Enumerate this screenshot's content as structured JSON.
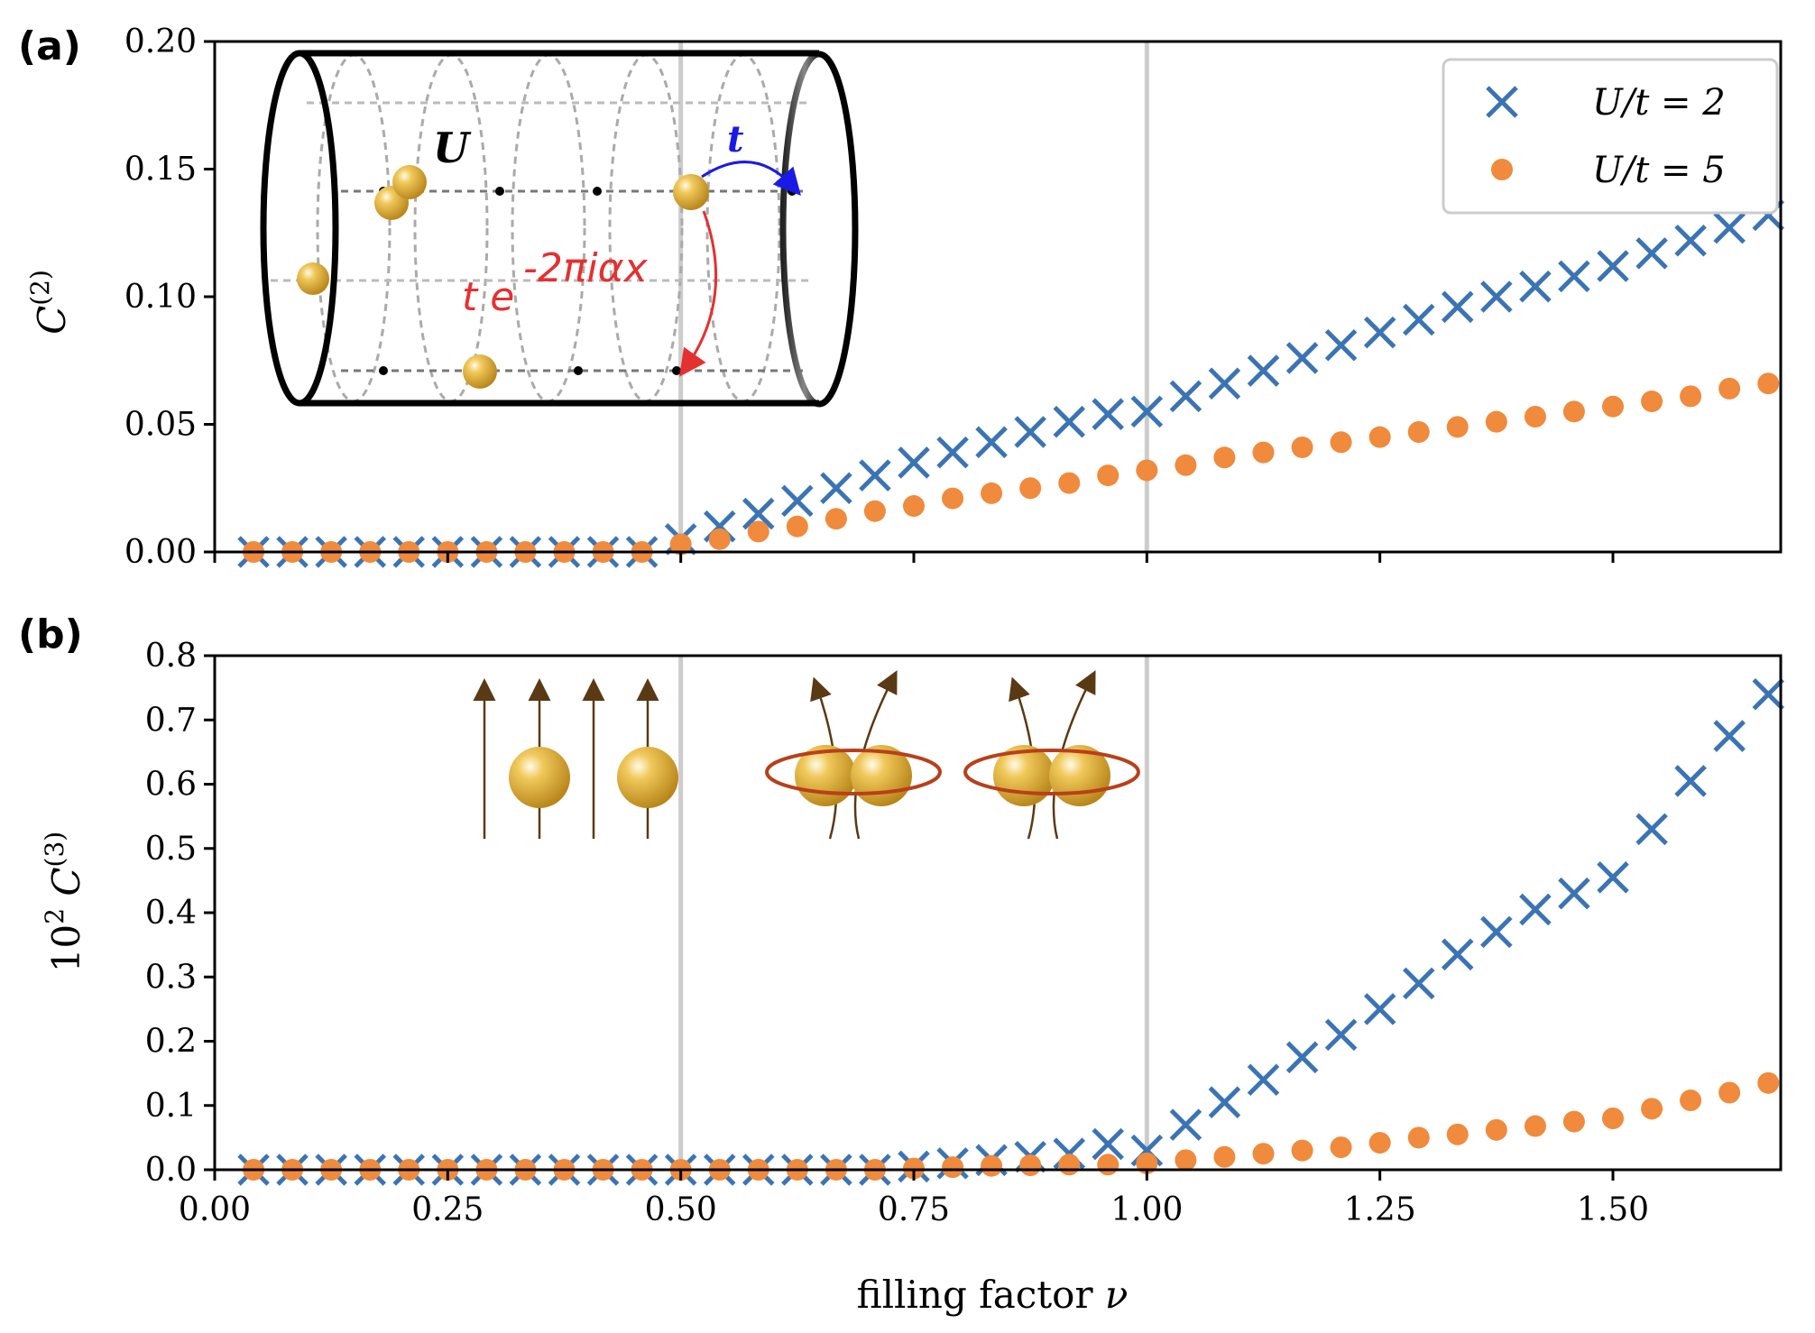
{
  "colors": {
    "series1": "#3b74b4",
    "series2": "#f08a3c",
    "vline": "#cccccc",
    "hop_t": "#1a1ae6",
    "hop_phase": "#e53030",
    "atom": "#d9a830",
    "spin_arrow": "#5a3a14",
    "pair_ring": "#b8401a"
  },
  "icons": {
    "cylinder": "cylinder-lattice-icon",
    "atom": "atom-sphere-icon",
    "spin": "spin-arrow-icon",
    "pair": "atom-pair-ring-icon"
  },
  "panels": {
    "a": {
      "label": "(a)"
    },
    "b": {
      "label": "(b)"
    }
  },
  "inset": {
    "interaction_label": "U",
    "hopping_label": "t",
    "phase_hop_prefix": "t e",
    "phase_hop_exponent": "-2πiαx"
  },
  "legend": {
    "entries": [
      "U/t = 2",
      "U/t = 5"
    ]
  },
  "chart_data": [
    {
      "type": "scatter",
      "panel": "(a)",
      "ylabel": "C(2)",
      "xlabel": "",
      "xlim": [
        0.0,
        1.68
      ],
      "ylim": [
        0.0,
        0.2
      ],
      "xticks": [
        0.0,
        0.25,
        0.5,
        0.75,
        1.0,
        1.25,
        1.5
      ],
      "yticks": [
        "0.00",
        "0.05",
        "0.10",
        "0.15",
        "0.20"
      ],
      "vlines": [
        0.5,
        1.0
      ],
      "grid": false,
      "legend": "top-right",
      "x": [
        0.0417,
        0.0833,
        0.125,
        0.1667,
        0.2083,
        0.25,
        0.2917,
        0.3333,
        0.375,
        0.4167,
        0.4583,
        0.5,
        0.5417,
        0.5833,
        0.625,
        0.6667,
        0.7083,
        0.75,
        0.7917,
        0.8333,
        0.875,
        0.9167,
        0.9583,
        1.0,
        1.0417,
        1.0833,
        1.125,
        1.1667,
        1.2083,
        1.25,
        1.2917,
        1.3333,
        1.375,
        1.4167,
        1.4583,
        1.5,
        1.5417,
        1.5833,
        1.625,
        1.6667
      ],
      "series": [
        {
          "name": "U/t = 2",
          "marker": "x",
          "values": [
            0.0,
            0.0,
            0.0,
            0.0,
            0.0,
            0.0,
            0.0,
            0.0,
            0.0,
            0.0,
            0.0,
            0.005,
            0.01,
            0.015,
            0.02,
            0.025,
            0.03,
            0.035,
            0.039,
            0.043,
            0.047,
            0.051,
            0.054,
            0.055,
            0.061,
            0.066,
            0.071,
            0.076,
            0.081,
            0.086,
            0.091,
            0.096,
            0.1,
            0.104,
            0.108,
            0.112,
            0.117,
            0.122,
            0.127,
            0.132
          ]
        },
        {
          "name": "U/t = 5",
          "marker": "o",
          "values": [
            0.0,
            0.0,
            0.0,
            0.0,
            0.0,
            0.0,
            0.0,
            0.0,
            0.0,
            0.0,
            0.0,
            0.003,
            0.005,
            0.008,
            0.01,
            0.013,
            0.016,
            0.018,
            0.021,
            0.023,
            0.025,
            0.027,
            0.03,
            0.032,
            0.034,
            0.037,
            0.039,
            0.041,
            0.043,
            0.045,
            0.047,
            0.049,
            0.051,
            0.053,
            0.055,
            0.057,
            0.059,
            0.061,
            0.064,
            0.066
          ]
        }
      ]
    },
    {
      "type": "scatter",
      "panel": "(b)",
      "ylabel": "10^2 C(3)",
      "xlabel": "filling factor ν",
      "xlim": [
        0.0,
        1.68
      ],
      "ylim": [
        0.0,
        0.8
      ],
      "xticks": [
        "0.00",
        "0.25",
        "0.50",
        "0.75",
        "1.00",
        "1.25",
        "1.50"
      ],
      "yticks": [
        "0.0",
        "0.1",
        "0.2",
        "0.3",
        "0.4",
        "0.5",
        "0.6",
        "0.7",
        "0.8"
      ],
      "vlines": [
        0.5,
        1.0
      ],
      "grid": false,
      "x": [
        0.0417,
        0.0833,
        0.125,
        0.1667,
        0.2083,
        0.25,
        0.2917,
        0.3333,
        0.375,
        0.4167,
        0.4583,
        0.5,
        0.5417,
        0.5833,
        0.625,
        0.6667,
        0.7083,
        0.75,
        0.7917,
        0.8333,
        0.875,
        0.9167,
        0.9583,
        1.0,
        1.0417,
        1.0833,
        1.125,
        1.1667,
        1.2083,
        1.25,
        1.2917,
        1.3333,
        1.375,
        1.4167,
        1.4583,
        1.5,
        1.5417,
        1.5833,
        1.625,
        1.6667
      ],
      "series": [
        {
          "name": "U/t = 2",
          "marker": "x",
          "values": [
            0.0,
            0.0,
            0.0,
            0.0,
            0.0,
            0.0,
            0.0,
            0.0,
            0.0,
            0.0,
            0.0,
            0.0,
            0.0,
            0.0,
            0.0,
            0.0,
            0.0,
            0.005,
            0.01,
            0.015,
            0.02,
            0.025,
            0.04,
            0.03,
            0.07,
            0.105,
            0.14,
            0.175,
            0.21,
            0.25,
            0.29,
            0.335,
            0.37,
            0.405,
            0.43,
            0.455,
            0.53,
            0.605,
            0.675,
            0.74
          ]
        },
        {
          "name": "U/t = 5",
          "marker": "o",
          "values": [
            0.0,
            0.0,
            0.0,
            0.0,
            0.0,
            0.0,
            0.0,
            0.0,
            0.0,
            0.0,
            0.0,
            0.0,
            0.0,
            0.0,
            0.0,
            0.0,
            0.0,
            0.002,
            0.004,
            0.006,
            0.007,
            0.008,
            0.008,
            0.01,
            0.015,
            0.02,
            0.025,
            0.03,
            0.035,
            0.042,
            0.05,
            0.055,
            0.062,
            0.068,
            0.075,
            0.08,
            0.095,
            0.108,
            0.12,
            0.135
          ]
        }
      ]
    }
  ]
}
